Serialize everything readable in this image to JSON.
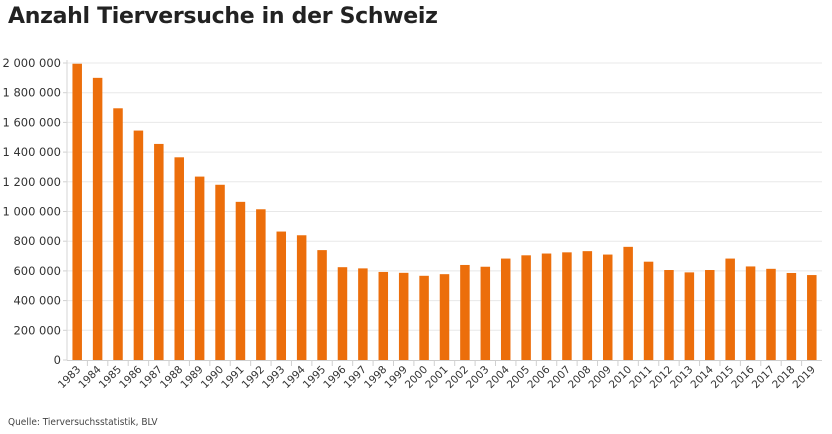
{
  "chart_data": {
    "type": "bar",
    "title": "Anzahl Tierversuche in der Schweiz",
    "xlabel": "",
    "ylabel": "",
    "ylim": [
      0,
      2000000
    ],
    "yticks": [
      0,
      200000,
      400000,
      600000,
      800000,
      1000000,
      1200000,
      1400000,
      1600000,
      1800000,
      2000000
    ],
    "ytick_labels": [
      "0",
      "200 000",
      "400 000",
      "600 000",
      "800 000",
      "1 000 000",
      "1 200 000",
      "1 400 000",
      "1 600 000",
      "1 800 000",
      "2 000 000"
    ],
    "grid": true,
    "legend": "none",
    "categories": [
      "1983",
      "1984",
      "1985",
      "1986",
      "1987",
      "1988",
      "1989",
      "1990",
      "1991",
      "1992",
      "1993",
      "1994",
      "1995",
      "1996",
      "1997",
      "1998",
      "1999",
      "2000",
      "2001",
      "2002",
      "2003",
      "2004",
      "2005",
      "2006",
      "2007",
      "2008",
      "2009",
      "2010",
      "2011",
      "2012",
      "2013",
      "2014",
      "2015",
      "2016",
      "2017",
      "2018",
      "2019"
    ],
    "values": [
      1995000,
      1900000,
      1695000,
      1545000,
      1455000,
      1365000,
      1235000,
      1180000,
      1065000,
      1015000,
      865000,
      840000,
      740000,
      625000,
      617000,
      593000,
      587000,
      567000,
      578000,
      640000,
      628000,
      683000,
      705000,
      717000,
      725000,
      733000,
      710000,
      762000,
      662000,
      606000,
      590000,
      606000,
      683000,
      630000,
      614000,
      586000,
      572000
    ],
    "bar_color": "#EC6E0B",
    "source": "Quelle: Tierversuchsstatistik, BLV"
  }
}
